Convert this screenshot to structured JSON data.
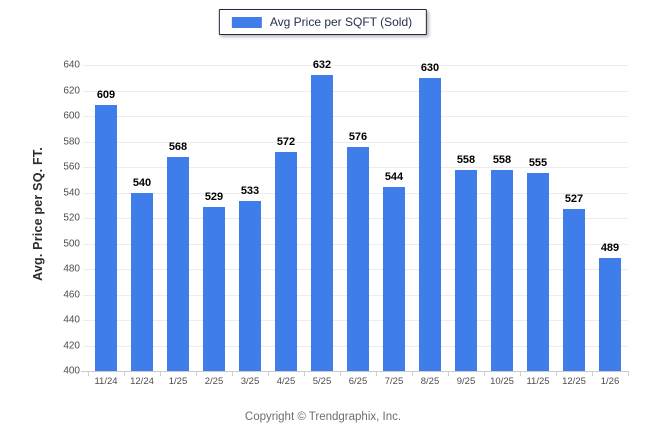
{
  "legend": {
    "label": "Avg Price per SQFT (Sold)"
  },
  "footer": {
    "copyright": "Copyright © Trendgraphix, Inc."
  },
  "chart_data": {
    "type": "bar",
    "title": "",
    "series_name": "Avg Price per SQFT (Sold)",
    "categories": [
      "11/24",
      "12/24",
      "1/25",
      "2/25",
      "3/25",
      "4/25",
      "5/25",
      "6/25",
      "7/25",
      "8/25",
      "9/25",
      "10/25",
      "11/25",
      "12/25",
      "1/26"
    ],
    "values": [
      609,
      540,
      568,
      529,
      533,
      572,
      632,
      576,
      544,
      630,
      558,
      558,
      555,
      527,
      489
    ],
    "xlabel": "",
    "ylabel": "Avg. Price per SQ. FT.",
    "ylim": [
      400,
      640
    ],
    "ytick_step": 20,
    "grid": "horizontal",
    "legend_position": "top-center",
    "value_labels": true,
    "bar_color": "#3f7eea",
    "grid_color": "#ececec",
    "axis_text_color": "#4d4d4d"
  }
}
